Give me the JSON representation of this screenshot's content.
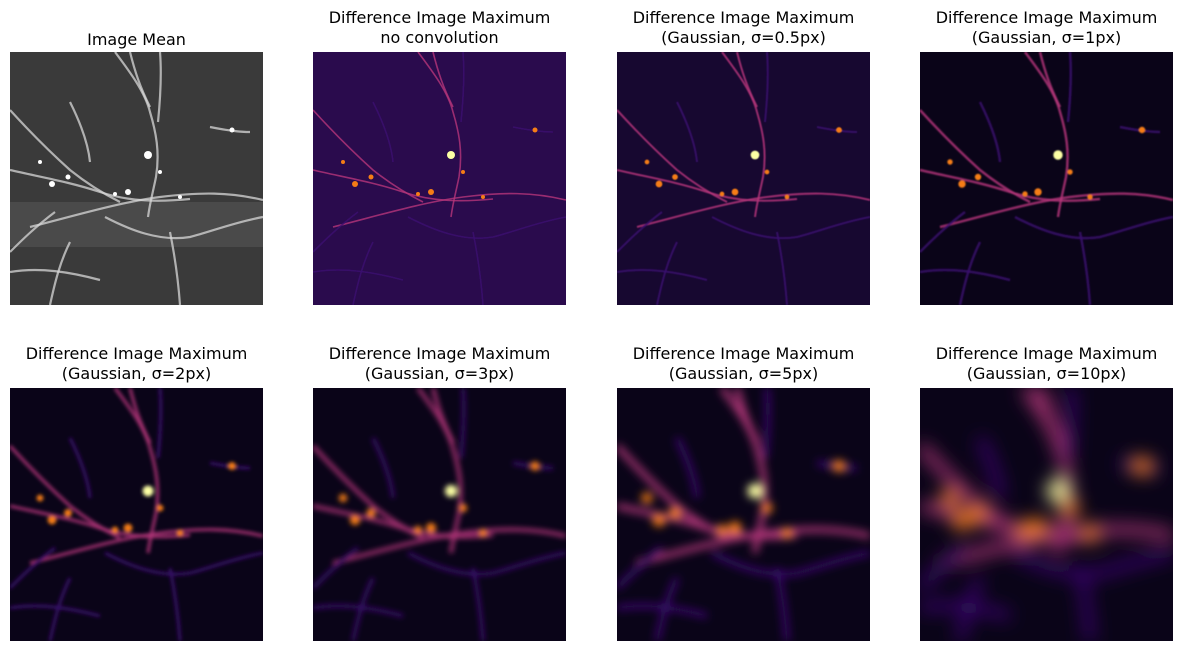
{
  "figure": {
    "panels": [
      {
        "title_line1": "Image Mean",
        "title_line2": "",
        "style": "gray",
        "sigma": 0
      },
      {
        "title_line1": "Difference Image Maximum",
        "title_line2": "no convolution",
        "style": "inferno",
        "sigma": 0
      },
      {
        "title_line1": "Difference Image Maximum",
        "title_line2": "(Gaussian, σ=0.5px)",
        "style": "inferno",
        "sigma": 0.5
      },
      {
        "title_line1": "Difference Image Maximum",
        "title_line2": "(Gaussian, σ=1px)",
        "style": "inferno",
        "sigma": 1
      },
      {
        "title_line1": "Difference Image Maximum",
        "title_line2": "(Gaussian, σ=2px)",
        "style": "inferno",
        "sigma": 2
      },
      {
        "title_line1": "Difference Image Maximum",
        "title_line2": "(Gaussian, σ=3px)",
        "style": "inferno",
        "sigma": 3
      },
      {
        "title_line1": "Difference Image Maximum",
        "title_line2": "(Gaussian, σ=5px)",
        "style": "inferno",
        "sigma": 5
      },
      {
        "title_line1": "Difference Image Maximum",
        "title_line2": "(Gaussian, σ=10px)",
        "style": "inferno",
        "sigma": 10
      }
    ],
    "colors": {
      "gray_bg": "#3a3a3a",
      "gray_line": "#d8d8d8",
      "inferno_dark": "#0a0418",
      "inferno_purple": "#3b0f70",
      "inferno_magenta": "#b5367a",
      "inferno_orange": "#f57d15",
      "inferno_yellow": "#fcffa4"
    }
  }
}
